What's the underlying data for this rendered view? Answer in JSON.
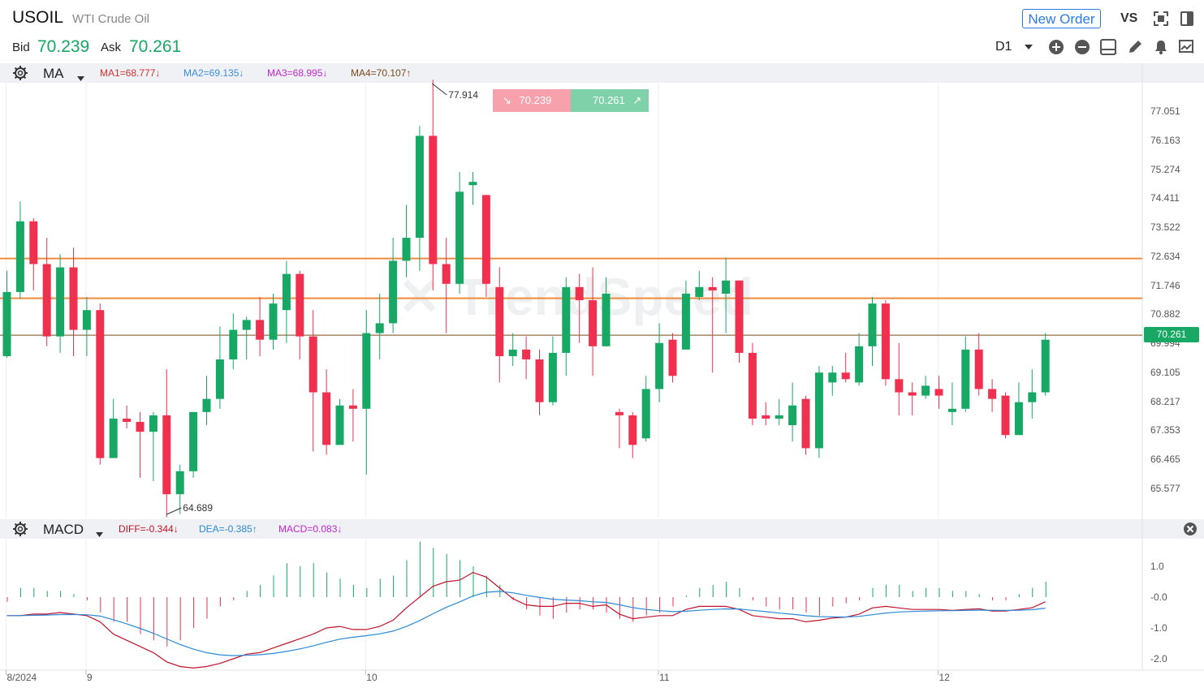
{
  "header": {
    "symbol": "USOIL",
    "name": "WTI Crude Oil",
    "bid_label": "Bid",
    "bid": "70.239",
    "ask_label": "Ask",
    "ask": "70.261",
    "new_order": "New Order",
    "vs": "VS",
    "timeframe": "D1"
  },
  "main_indicator": {
    "name": "MA",
    "ma1": "MA1=68.777↓",
    "ma2": "MA2=69.135↓",
    "ma3": "MA3=68.995↓",
    "ma4": "MA4=70.107↑",
    "colors": {
      "ma1": "#d0312d",
      "ma2": "#3a8fe0",
      "ma3": "#c026d3",
      "ma4": "#7a4a1a"
    }
  },
  "sub_indicator": {
    "name": "MACD",
    "diff": "DIFF=-0.344↓",
    "dea": "DEA=-0.385↑",
    "macd": "MACD=0.083↓"
  },
  "tooltip": {
    "sell": "70.239",
    "buy": "70.261"
  },
  "price_label": "70.261",
  "high_label": "77.914",
  "low_label": "64.689",
  "price_axis": [
    "77.051",
    "76.163",
    "75.274",
    "74.411",
    "73.522",
    "72.634",
    "71.746",
    "70.882",
    "69.994",
    "69.105",
    "68.217",
    "67.353",
    "66.465",
    "65.577"
  ],
  "macd_axis": [
    "1.0",
    "-0.0",
    "-1.0",
    "-2.0"
  ],
  "x_axis": [
    {
      "label": "8/2024",
      "idx": 0
    },
    {
      "label": "9",
      "idx": 6
    },
    {
      "label": "10",
      "idx": 27
    },
    {
      "label": "11",
      "idx": 49
    },
    {
      "label": "12",
      "idx": 70
    }
  ],
  "colors": {
    "up": "#16a864",
    "down": "#f0304f",
    "hline": "#f08a3c",
    "priceline": "#7a4a1a",
    "diff": "#c0142c",
    "dea": "#2a8ad6"
  },
  "chart_data": {
    "type": "candlestick",
    "price_range": [
      64.5,
      78.2
    ],
    "horizontal_lines": [
      72.57,
      71.36
    ],
    "current_price": 70.261,
    "candles": [
      [
        69.6,
        71.55,
        72.2,
        69.55
      ],
      [
        71.55,
        73.7,
        74.3,
        71.35
      ],
      [
        73.7,
        72.4,
        73.8,
        71.6
      ],
      [
        72.4,
        70.2,
        73.2,
        69.9
      ],
      [
        70.2,
        72.3,
        72.7,
        69.7
      ],
      [
        72.3,
        70.4,
        72.9,
        69.6
      ],
      [
        70.4,
        71.0,
        71.4,
        69.6
      ],
      [
        71.0,
        66.5,
        71.2,
        66.3
      ],
      [
        66.5,
        67.7,
        68.3,
        67.3
      ],
      [
        67.7,
        67.6,
        68.1,
        67.4
      ],
      [
        67.6,
        67.3,
        67.9,
        65.9
      ],
      [
        67.3,
        67.8,
        67.9,
        65.8
      ],
      [
        67.8,
        65.4,
        69.2,
        64.7
      ],
      [
        65.4,
        66.1,
        66.3,
        64.8
      ],
      [
        66.1,
        67.9,
        67.9,
        65.9
      ],
      [
        67.9,
        68.3,
        69.0,
        67.5
      ],
      [
        68.3,
        69.5,
        70.5,
        68.0
      ],
      [
        69.5,
        70.4,
        70.9,
        69.2
      ],
      [
        70.4,
        70.7,
        70.8,
        69.5
      ],
      [
        70.7,
        70.1,
        71.4,
        69.6
      ],
      [
        70.1,
        71.2,
        71.5,
        69.8
      ],
      [
        71.0,
        72.1,
        72.5,
        70.0
      ],
      [
        72.1,
        70.2,
        72.2,
        69.5
      ],
      [
        70.2,
        68.5,
        71.0,
        66.7
      ],
      [
        68.5,
        66.9,
        69.2,
        66.6
      ],
      [
        66.9,
        68.1,
        68.3,
        67.4
      ],
      [
        68.1,
        68.0,
        68.6,
        67.0
      ],
      [
        68.0,
        70.3,
        71.0,
        66.0
      ],
      [
        70.3,
        70.6,
        71.5,
        69.5
      ],
      [
        70.6,
        72.5,
        73.2,
        70.3
      ],
      [
        72.5,
        73.2,
        74.2,
        72.0
      ],
      [
        73.2,
        76.3,
        76.6,
        72.2
      ],
      [
        76.3,
        72.4,
        78.0,
        71.6
      ],
      [
        72.4,
        71.8,
        73.2,
        70.3
      ],
      [
        71.8,
        74.6,
        75.2,
        71.5
      ],
      [
        74.8,
        74.9,
        75.2,
        74.2
      ],
      [
        74.5,
        71.8,
        74.5,
        71.4
      ],
      [
        71.7,
        69.6,
        72.3,
        68.8
      ],
      [
        69.6,
        69.8,
        70.3,
        69.3
      ],
      [
        69.8,
        69.5,
        70.2,
        68.9
      ],
      [
        69.5,
        68.2,
        69.8,
        67.8
      ],
      [
        68.2,
        69.7,
        70.2,
        68.1
      ],
      [
        69.7,
        71.7,
        72.0,
        69.0
      ],
      [
        71.7,
        71.3,
        72.1,
        70.0
      ],
      [
        71.3,
        69.9,
        72.3,
        69.0
      ],
      [
        69.9,
        71.5,
        72.0,
        69.9
      ],
      [
        67.9,
        67.8,
        68.0,
        66.8
      ],
      [
        67.8,
        66.9,
        67.9,
        66.5
      ],
      [
        67.1,
        68.6,
        69.0,
        67.0
      ],
      [
        68.6,
        70.0,
        70.6,
        68.2
      ],
      [
        70.1,
        69.0,
        70.3,
        68.8
      ],
      [
        69.8,
        71.5,
        71.9,
        69.9
      ],
      [
        71.4,
        71.7,
        72.2,
        71.3
      ],
      [
        71.7,
        71.6,
        72.0,
        69.1
      ],
      [
        71.5,
        71.9,
        72.6,
        70.3
      ],
      [
        71.9,
        69.7,
        71.9,
        69.4
      ],
      [
        69.7,
        67.7,
        70.0,
        67.5
      ],
      [
        67.8,
        67.7,
        68.2,
        67.5
      ],
      [
        67.7,
        67.8,
        68.3,
        67.5
      ],
      [
        67.5,
        68.1,
        68.8,
        67.0
      ],
      [
        68.3,
        66.8,
        68.4,
        66.6
      ],
      [
        66.8,
        69.1,
        69.3,
        66.5
      ],
      [
        68.8,
        69.1,
        69.3,
        68.4
      ],
      [
        69.1,
        68.9,
        69.7,
        68.8
      ],
      [
        68.8,
        69.9,
        70.3,
        68.7
      ],
      [
        69.9,
        71.2,
        71.4,
        69.3
      ],
      [
        71.2,
        68.9,
        71.3,
        68.7
      ],
      [
        68.9,
        68.5,
        70.0,
        67.8
      ],
      [
        68.5,
        68.4,
        68.8,
        67.8
      ],
      [
        68.4,
        68.7,
        69.0,
        68.3
      ],
      [
        68.6,
        68.4,
        69.0,
        68.0
      ],
      [
        67.9,
        68.0,
        68.8,
        67.5
      ],
      [
        68.0,
        69.8,
        70.2,
        67.9
      ],
      [
        69.8,
        68.6,
        70.3,
        68.4
      ],
      [
        68.6,
        68.3,
        68.9,
        67.9
      ],
      [
        68.4,
        67.2,
        68.5,
        67.1
      ],
      [
        67.2,
        68.2,
        68.8,
        67.2
      ],
      [
        68.2,
        68.5,
        69.2,
        67.7
      ],
      [
        68.5,
        70.1,
        70.3,
        68.4
      ]
    ],
    "macd": {
      "range": [
        -2.35,
        1.95
      ],
      "hist": [
        -0.15,
        0.3,
        0.3,
        0.2,
        0.2,
        0.1,
        -0.1,
        -0.5,
        -0.8,
        -0.8,
        -1.2,
        -1.4,
        -1.6,
        -1.4,
        -1.0,
        -0.7,
        -0.3,
        -0.1,
        0.2,
        0.4,
        0.7,
        1.1,
        1.0,
        1.1,
        0.8,
        0.6,
        0.4,
        0.3,
        0.6,
        0.7,
        1.2,
        1.8,
        1.6,
        1.4,
        1.2,
        1.0,
        0.7,
        0.4,
        -0.1,
        -0.4,
        -0.6,
        -0.7,
        -0.5,
        -0.4,
        -0.4,
        -0.5,
        -0.7,
        -0.8,
        -0.6,
        -0.5,
        -0.3,
        0.05,
        0.3,
        0.4,
        0.5,
        0.3,
        -0.1,
        -0.3,
        -0.4,
        -0.4,
        -0.5,
        -0.6,
        -0.3,
        -0.2,
        -0.1,
        0.3,
        0.4,
        0.4,
        0.2,
        0.3,
        0.3,
        0.2,
        0.2,
        0.1,
        -0.1,
        -0.1,
        0.1,
        0.3,
        0.5
      ],
      "diff": [
        -0.6,
        -0.6,
        -0.55,
        -0.55,
        -0.5,
        -0.55,
        -0.6,
        -0.8,
        -1.2,
        -1.4,
        -1.6,
        -1.8,
        -2.1,
        -2.25,
        -2.3,
        -2.25,
        -2.15,
        -2.0,
        -1.85,
        -1.8,
        -1.65,
        -1.5,
        -1.35,
        -1.2,
        -1.0,
        -0.95,
        -1.05,
        -1.05,
        -0.95,
        -0.75,
        -0.35,
        0.0,
        0.35,
        0.5,
        0.55,
        0.8,
        0.65,
        0.3,
        -0.05,
        -0.25,
        -0.3,
        -0.3,
        -0.2,
        -0.2,
        -0.3,
        -0.25,
        -0.55,
        -0.7,
        -0.65,
        -0.6,
        -0.6,
        -0.4,
        -0.3,
        -0.3,
        -0.3,
        -0.4,
        -0.6,
        -0.65,
        -0.7,
        -0.7,
        -0.8,
        -0.75,
        -0.68,
        -0.65,
        -0.55,
        -0.35,
        -0.3,
        -0.35,
        -0.4,
        -0.4,
        -0.4,
        -0.43,
        -0.4,
        -0.38,
        -0.45,
        -0.45,
        -0.4,
        -0.344,
        -0.15
      ]
    }
  }
}
